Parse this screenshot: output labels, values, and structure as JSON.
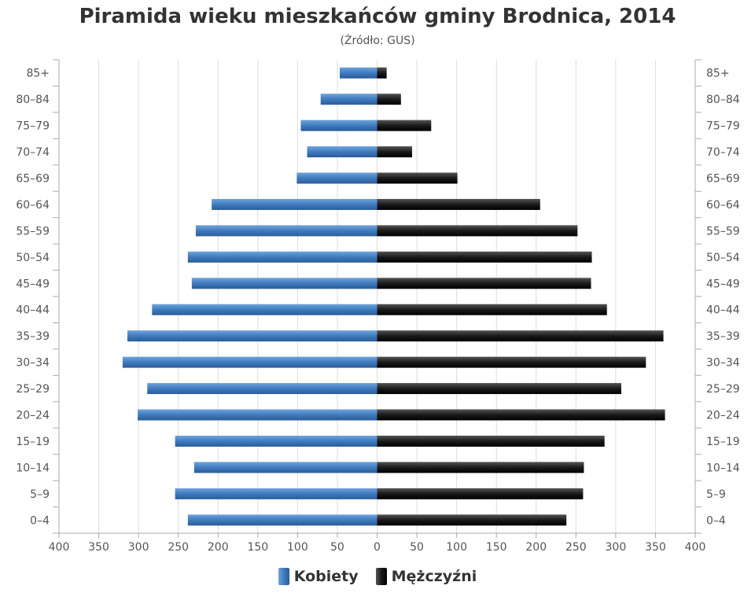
{
  "chart_data": {
    "type": "bar",
    "orientation": "horizontal-pyramid",
    "title": "Piramida wieku mieszkańców gminy Brodnica, 2014",
    "subtitle": "(Źródło: GUS)",
    "categories": [
      "85+",
      "80–84",
      "75–79",
      "70–74",
      "65–69",
      "60–64",
      "55–59",
      "50–54",
      "45–49",
      "40–44",
      "35–39",
      "30–34",
      "25–29",
      "20–24",
      "15–19",
      "10–14",
      "5–9",
      "0–4"
    ],
    "series": [
      {
        "name": "Kobiety",
        "color": "#3f7bbf",
        "side": "left",
        "values": [
          47,
          71,
          96,
          88,
          101,
          208,
          228,
          238,
          233,
          283,
          314,
          320,
          289,
          301,
          254,
          230,
          254,
          238
        ]
      },
      {
        "name": "Mężczyźni",
        "color": "#1a1a1a",
        "side": "right",
        "values": [
          12,
          30,
          68,
          44,
          101,
          205,
          252,
          270,
          269,
          289,
          360,
          338,
          307,
          362,
          286,
          260,
          259,
          238
        ]
      }
    ],
    "xlim": [
      -400,
      400
    ],
    "xticks": [
      "400",
      "350",
      "300",
      "250",
      "200",
      "150",
      "100",
      "50",
      "0",
      "50",
      "100",
      "150",
      "200",
      "250",
      "300",
      "350",
      "400"
    ],
    "grid": true,
    "legend_position": "bottom-center"
  }
}
